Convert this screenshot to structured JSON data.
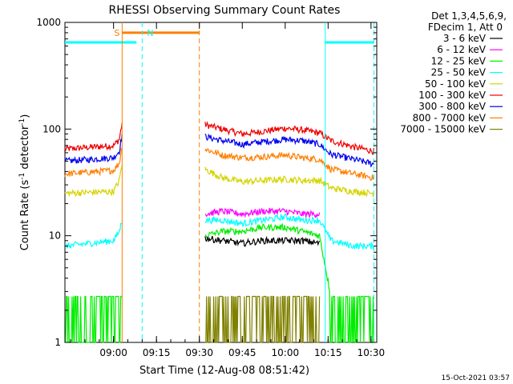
{
  "chart_data": {
    "type": "line",
    "title": "RHESSI Observing Summary Count Rates",
    "xlabel": "Start Time (12-Aug-08 08:51:42)",
    "ylabel_main": "Count Rate (s",
    "ylabel_sup1": "-1",
    "ylabel_mid": " detector",
    "ylabel_sup2": "-1",
    "ylabel_end": ")",
    "yscale": "log",
    "ylim": [
      1,
      1000
    ],
    "xlim_minutes": [
      -17,
      92
    ],
    "x_ticks": [
      {
        "label": "09:00",
        "t": 0
      },
      {
        "label": "09:15",
        "t": 15
      },
      {
        "label": "09:30",
        "t": 30
      },
      {
        "label": "09:45",
        "t": 45
      },
      {
        "label": "10:00",
        "t": 60
      },
      {
        "label": "10:15",
        "t": 75
      },
      {
        "label": "10:30",
        "t": 90
      }
    ],
    "y_ticks": [
      {
        "label": "1",
        "v": 1
      },
      {
        "label": "10",
        "v": 10
      },
      {
        "label": "100",
        "v": 100
      },
      {
        "label": "1000",
        "v": 1000
      }
    ],
    "legend": {
      "header1": "Det 1,3,4,5,6,9,",
      "header2": "FDecim 1, Att 0",
      "entries": [
        {
          "name": "3 - 6 keV",
          "color": "#000000"
        },
        {
          "name": "6 - 12 keV",
          "color": "#ff00ff"
        },
        {
          "name": "12 - 25 keV",
          "color": "#00ee00"
        },
        {
          "name": "25 - 50 keV",
          "color": "#00ffff"
        },
        {
          "name": "50 - 100 keV",
          "color": "#d4d400"
        },
        {
          "name": "100 - 300 keV",
          "color": "#ee0000"
        },
        {
          "name": "300 - 800 keV",
          "color": "#0000ee"
        },
        {
          "name": "800 - 7000 keV",
          "color": "#ff7f00"
        },
        {
          "name": "7000 - 15000 keV",
          "color": "#808000"
        }
      ]
    },
    "data_segments": [
      {
        "start": -17,
        "end": 3
      },
      {
        "start": 32,
        "end": 91
      }
    ],
    "series": [
      {
        "name": "100 - 300 keV",
        "color": "#ee0000",
        "points": [
          [
            -17,
            65
          ],
          [
            0,
            70
          ],
          [
            2,
            80
          ],
          [
            3,
            115
          ],
          [
            32,
            110
          ],
          [
            38,
            100
          ],
          [
            45,
            90
          ],
          [
            52,
            95
          ],
          [
            60,
            102
          ],
          [
            66,
            98
          ],
          [
            72,
            92
          ],
          [
            76,
            78
          ],
          [
            84,
            68
          ],
          [
            91,
            62
          ]
        ]
      },
      {
        "name": "300 - 800 keV",
        "color": "#0000ee",
        "points": [
          [
            -17,
            50
          ],
          [
            0,
            54
          ],
          [
            2,
            62
          ],
          [
            3,
            90
          ],
          [
            32,
            85
          ],
          [
            38,
            78
          ],
          [
            45,
            72
          ],
          [
            52,
            76
          ],
          [
            60,
            80
          ],
          [
            66,
            78
          ],
          [
            72,
            72
          ],
          [
            76,
            58
          ],
          [
            84,
            52
          ],
          [
            91,
            47
          ]
        ]
      },
      {
        "name": "800 - 7000 keV",
        "color": "#ff7f00",
        "points": [
          [
            -17,
            38
          ],
          [
            0,
            41
          ],
          [
            2,
            48
          ],
          [
            3,
            70
          ],
          [
            32,
            65
          ],
          [
            38,
            57
          ],
          [
            45,
            54
          ],
          [
            52,
            55
          ],
          [
            60,
            57
          ],
          [
            66,
            54
          ],
          [
            72,
            52
          ],
          [
            76,
            42
          ],
          [
            84,
            38
          ],
          [
            91,
            35
          ]
        ]
      },
      {
        "name": "50 - 100 keV",
        "color": "#d4d400",
        "points": [
          [
            -17,
            25
          ],
          [
            0,
            26
          ],
          [
            2,
            33
          ],
          [
            3,
            48
          ],
          [
            32,
            42
          ],
          [
            38,
            35
          ],
          [
            45,
            32
          ],
          [
            52,
            33
          ],
          [
            60,
            34
          ],
          [
            66,
            33
          ],
          [
            72,
            33
          ],
          [
            76,
            28
          ],
          [
            84,
            26
          ],
          [
            91,
            25
          ]
        ]
      },
      {
        "name": "6 - 12 keV",
        "color": "#ff00ff",
        "points": [
          [
            32,
            16
          ],
          [
            38,
            17
          ],
          [
            45,
            16
          ],
          [
            52,
            17
          ],
          [
            60,
            17
          ],
          [
            66,
            16
          ],
          [
            72,
            16
          ]
        ]
      },
      {
        "name": "25 - 50 keV",
        "color": "#00ffff",
        "points": [
          [
            -17,
            8
          ],
          [
            0,
            9
          ],
          [
            2,
            11
          ],
          [
            3,
            14
          ],
          [
            32,
            14
          ],
          [
            38,
            14
          ],
          [
            45,
            13
          ],
          [
            52,
            14
          ],
          [
            60,
            15
          ],
          [
            66,
            14
          ],
          [
            72,
            14
          ],
          [
            76,
            9
          ],
          [
            84,
            8
          ],
          [
            91,
            8
          ]
        ]
      },
      {
        "name": "12 - 25 keV",
        "color": "#00ee00",
        "points": [
          [
            -17,
            2.7
          ],
          [
            3,
            2.7
          ],
          [
            32,
            10
          ],
          [
            38,
            11
          ],
          [
            45,
            11
          ],
          [
            52,
            12
          ],
          [
            60,
            12
          ],
          [
            66,
            11
          ],
          [
            72,
            10
          ],
          [
            76,
            2.7
          ],
          [
            91,
            2.7
          ]
        ]
      },
      {
        "name": "3 - 6 keV",
        "color": "#000000",
        "points": [
          [
            32,
            9.5
          ],
          [
            38,
            9
          ],
          [
            45,
            8.5
          ],
          [
            52,
            9
          ],
          [
            60,
            9
          ],
          [
            66,
            9
          ],
          [
            72,
            8.5
          ]
        ]
      },
      {
        "name": "7000 - 15000 keV",
        "color": "#808000",
        "points": [
          [
            32,
            1
          ],
          [
            45,
            1
          ],
          [
            52,
            1.1
          ],
          [
            60,
            1.8
          ],
          [
            66,
            1.6
          ],
          [
            72,
            1
          ]
        ]
      }
    ],
    "markers": [
      {
        "label": "S",
        "color": "#ff7f00",
        "t": 3,
        "style": "solid"
      },
      {
        "label": "N",
        "color": "#00ffff",
        "t": 10,
        "style": "dashed"
      }
    ],
    "bars": [
      {
        "color": "#ff7f00",
        "from": 3,
        "to": 30,
        "level": 800
      },
      {
        "color": "#00ffff",
        "from": -17,
        "to": 8,
        "level": 650
      },
      {
        "color": "#00ffff",
        "from": 74,
        "to": 91,
        "level": 650
      }
    ],
    "vlines": [
      {
        "color": "#ff7f00",
        "t": 30,
        "style": "dashed"
      },
      {
        "color": "#00ffff",
        "t": 74,
        "style": "solid"
      },
      {
        "color": "#00ffff",
        "t": 91,
        "style": "dashed"
      }
    ]
  },
  "footer": {
    "timestamp": "15-Oct-2021 03:57"
  }
}
